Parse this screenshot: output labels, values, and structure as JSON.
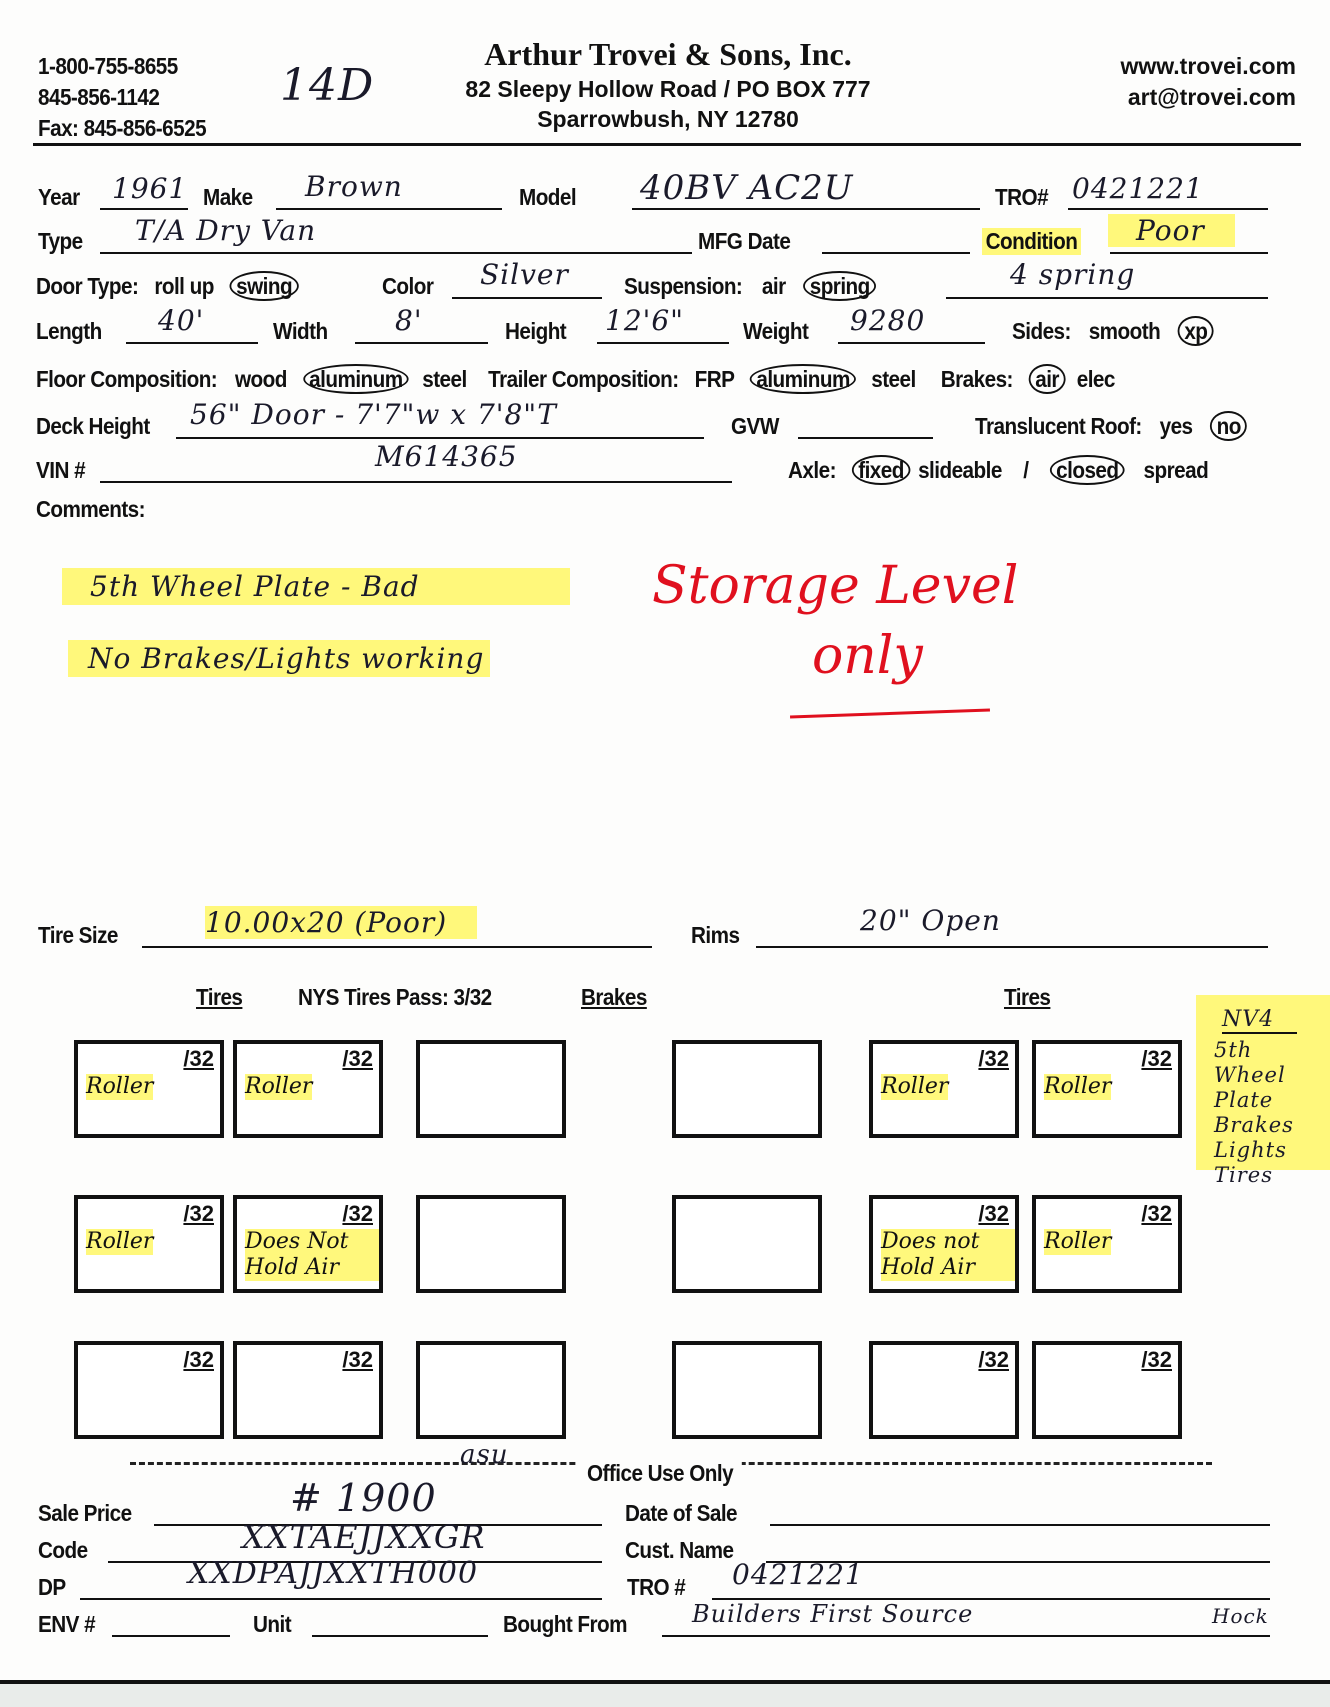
{
  "header": {
    "phone1": "1-800-755-8655",
    "phone2": "845-856-1142",
    "fax": "Fax: 845-856-6525",
    "company": "Arthur Trovei & Sons, Inc.",
    "address1": "82 Sleepy Hollow Road / PO BOX 777",
    "address2": "Sparrowbush, NY 12780",
    "website": "www.trovei.com",
    "email": "art@trovei.com",
    "handwritten_note": "14D"
  },
  "form": {
    "year": {
      "label": "Year",
      "value": "1961"
    },
    "make": {
      "label": "Make",
      "value": "Brown"
    },
    "model": {
      "label": "Model",
      "value": "40BV AC2U"
    },
    "tro": {
      "label": "TRO#",
      "value": "0421221"
    },
    "type": {
      "label": "Type",
      "value": "T/A Dry Van"
    },
    "mfg_date": {
      "label": "MFG Date",
      "value": ""
    },
    "condition": {
      "label": "Condition",
      "value": "Poor"
    },
    "door_type": {
      "label": "Door Type:",
      "options": [
        {
          "label": "roll up",
          "selected": false
        },
        {
          "label": "swing",
          "selected": true
        }
      ]
    },
    "color": {
      "label": "Color",
      "value": "Silver"
    },
    "suspension": {
      "label": "Suspension:",
      "options": [
        {
          "label": "air",
          "selected": false
        },
        {
          "label": "spring",
          "selected": true
        }
      ],
      "value": "4 spring"
    },
    "length": {
      "label": "Length",
      "value": "40'"
    },
    "width": {
      "label": "Width",
      "value": "8'"
    },
    "height": {
      "label": "Height",
      "value": "12'6\""
    },
    "weight": {
      "label": "Weight",
      "value": "9280"
    },
    "sides": {
      "label": "Sides:",
      "options": [
        {
          "label": "smooth",
          "selected": false
        },
        {
          "label": "xp",
          "selected": true
        }
      ]
    },
    "floor": {
      "label": "Floor Composition:",
      "options": [
        {
          "label": "wood",
          "selected": false
        },
        {
          "label": "aluminum",
          "selected": true
        },
        {
          "label": "steel",
          "selected": false
        }
      ]
    },
    "trailer": {
      "label": "Trailer Composition:",
      "options": [
        {
          "label": "FRP",
          "selected": false
        },
        {
          "label": "aluminum",
          "selected": true
        },
        {
          "label": "steel",
          "selected": false
        }
      ]
    },
    "brakes": {
      "label": "Brakes:",
      "options": [
        {
          "label": "air",
          "selected": true
        },
        {
          "label": "elec",
          "selected": false
        }
      ]
    },
    "deck_height": {
      "label": "Deck Height",
      "value": "56\"  Door - 7'7\"w x 7'8\"T"
    },
    "gvw": {
      "label": "GVW",
      "value": ""
    },
    "roof": {
      "label": "Translucent Roof:",
      "options": [
        {
          "label": "yes",
          "selected": false
        },
        {
          "label": "no",
          "selected": true
        }
      ]
    },
    "vin": {
      "label": "VIN #",
      "value": "M614365"
    },
    "axle": {
      "label": "Axle:",
      "options": [
        {
          "label": "fixed",
          "selected": true
        },
        {
          "label": "slideable",
          "selected": false
        },
        {
          "label": "/",
          "selected": false
        },
        {
          "label": "closed",
          "selected": true
        },
        {
          "label": "spread",
          "selected": false
        }
      ]
    },
    "comments": {
      "label": "Comments:",
      "lines": [
        "5th Wheel Plate - Bad",
        "No Brakes/Lights working"
      ]
    },
    "stamp": [
      "Storage Level",
      "only"
    ]
  },
  "tires": {
    "tire_size": {
      "label": "Tire Size",
      "value": "10.00x20 (Poor)"
    },
    "rims": {
      "label": "Rims",
      "value": "20\" Open"
    },
    "headers": {
      "tires_left": "Tires",
      "nys": "NYS Tires Pass: 3/32",
      "brakes": "Brakes",
      "tires_right": "Tires"
    },
    "gauge": "/32",
    "rows": [
      [
        "Roller",
        "Roller",
        "",
        "",
        "Roller",
        "Roller"
      ],
      [
        "Roller",
        "Does Not Hold Air",
        "",
        "",
        "Does not Hold Air",
        "Roller"
      ],
      [
        "",
        "",
        "",
        "",
        "",
        ""
      ]
    ],
    "side_note": {
      "title": "NV4",
      "items": [
        "5th Wheel",
        "Plate",
        "Brakes",
        "Lights",
        "Tires"
      ]
    }
  },
  "office": {
    "title": "Office Use Only",
    "initials": "asu",
    "sale_price": {
      "label": "Sale Price",
      "value": "# 1900"
    },
    "date_of_sale": {
      "label": "Date of Sale",
      "value": ""
    },
    "code": {
      "label": "Code",
      "value": "XXTAEJJXXGR"
    },
    "cust_name": {
      "label": "Cust. Name",
      "value": ""
    },
    "dp": {
      "label": "DP",
      "value": "XXDPAJJXXTH000"
    },
    "tro": {
      "label": "TRO #",
      "value": "0421221"
    },
    "env": {
      "label": "ENV #",
      "value": ""
    },
    "unit": {
      "label": "Unit",
      "value": ""
    },
    "bought_from": {
      "label": "Bought From",
      "value": "Builders First Source",
      "note": "Hock"
    }
  },
  "colors": {
    "highlight": "#fff550",
    "stamp_red": "#e0101e",
    "ink": "#1a1a2a"
  }
}
